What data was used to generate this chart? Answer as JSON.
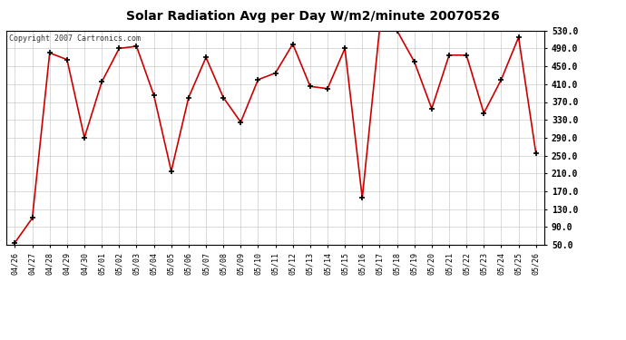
{
  "title": "Solar Radiation Avg per Day W/m2/minute 20070526",
  "copyright": "Copyright 2007 Cartronics.com",
  "labels": [
    "04/26",
    "04/27",
    "04/28",
    "04/29",
    "04/30",
    "05/01",
    "05/02",
    "05/03",
    "05/04",
    "05/05",
    "05/06",
    "05/07",
    "05/08",
    "05/09",
    "05/10",
    "05/11",
    "05/12",
    "05/13",
    "05/14",
    "05/15",
    "05/16",
    "05/17",
    "05/18",
    "05/19",
    "05/20",
    "05/21",
    "05/22",
    "05/23",
    "05/24",
    "05/25",
    "05/26"
  ],
  "values": [
    55,
    110,
    480,
    465,
    290,
    415,
    490,
    495,
    385,
    215,
    380,
    470,
    380,
    325,
    420,
    435,
    500,
    405,
    400,
    490,
    155,
    535,
    530,
    460,
    355,
    475,
    475,
    345,
    420,
    515,
    255
  ],
  "line_color": "#cc0000",
  "marker_color": "#000000",
  "bg_color": "#ffffff",
  "plot_bg_color": "#ffffff",
  "grid_color": "#cccccc",
  "ylim_min": 50.0,
  "ylim_max": 530.0,
  "yticks": [
    50.0,
    90.0,
    130.0,
    170.0,
    210.0,
    250.0,
    290.0,
    330.0,
    370.0,
    410.0,
    450.0,
    490.0,
    530.0
  ]
}
